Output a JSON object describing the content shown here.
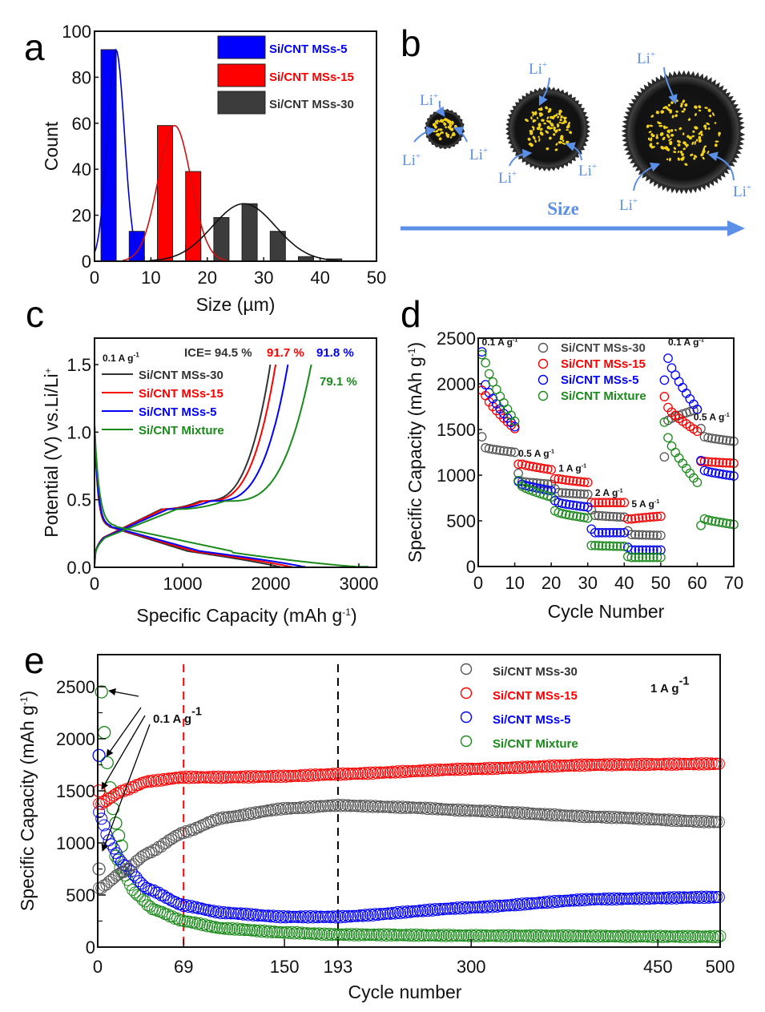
{
  "figure": {
    "panel_labels": [
      "a",
      "b",
      "c",
      "d",
      "e"
    ]
  },
  "colors": {
    "ms30": "#333333",
    "ms15": "#ff0000",
    "ms5": "#0000ff",
    "mixture": "#1a8a1a",
    "li_blue": "#5b8fe8",
    "dash_red": "#ff0000",
    "dash_black": "#000000"
  },
  "chart_data": [
    {
      "id": "a",
      "type": "bar",
      "title": "",
      "xlabel": "Size (µm)",
      "ylabel": "Count",
      "xlim": [
        0,
        50
      ],
      "ylim": [
        0,
        100
      ],
      "xticks": [
        "0",
        "10",
        "20",
        "30",
        "40",
        "50"
      ],
      "yticks": [
        "0",
        "20",
        "40",
        "60",
        "80",
        "100"
      ],
      "legend_position": "top-right",
      "bin_width": 2.5,
      "series": [
        {
          "name": "Si/CNT MSs-5",
          "color_key": "ms5",
          "bins": [
            2.5,
            7.5
          ],
          "values": [
            92,
            13
          ],
          "fit_mean": 3.8,
          "fit_sigma": 1.5,
          "fit_peak": 92
        },
        {
          "name": "Si/CNT MSs-15",
          "color_key": "ms15",
          "bins": [
            7.5,
            12.5,
            17.5
          ],
          "values": [
            2,
            59,
            39
          ],
          "fit_mean": 14.2,
          "fit_sigma": 2.9,
          "fit_peak": 59
        },
        {
          "name": "Si/CNT MSs-30",
          "color_key": "ms30",
          "bins": [
            17.5,
            22.5,
            27.5,
            32.5,
            37.5,
            42.5
          ],
          "values": [
            7,
            19,
            25,
            13,
            2,
            1
          ],
          "fit_mean": 26.5,
          "fit_sigma": 5.6,
          "fit_peak": 25
        }
      ]
    },
    {
      "id": "c",
      "type": "line",
      "xlabel": "Specific Capacity (mAh g-1)",
      "ylabel": "Potential (V) vs.Li/Li+",
      "xlim": [
        0,
        3200
      ],
      "ylim": [
        0,
        1.7
      ],
      "xticks": [
        "0",
        "1000",
        "2000",
        "3000"
      ],
      "yticks": [
        "0.0",
        "0.5",
        "1.0",
        "1.5"
      ],
      "legend_position": "top-left",
      "current_label": "0.1 A g-1",
      "ice_prefix": "ICE=",
      "series": [
        {
          "name": "Si/CNT MSs-30",
          "color_key": "ms30",
          "ice": "94.5 %",
          "discharge_capacity": 2110,
          "charge_capacity": 1995
        },
        {
          "name": "Si/CNT MSs-15",
          "color_key": "ms15",
          "ice": "91.7 %",
          "discharge_capacity": 2240,
          "charge_capacity": 2055
        },
        {
          "name": "Si/CNT MSs-5",
          "color_key": "ms5",
          "ice": "91.8 %",
          "discharge_capacity": 2390,
          "charge_capacity": 2195
        },
        {
          "name": "Si/CNT Mixture",
          "color_key": "mixture",
          "ice": "79.1 %",
          "discharge_capacity": 3110,
          "charge_capacity": 2460
        }
      ]
    },
    {
      "id": "d",
      "type": "scatter",
      "xlabel": "Cycle Number",
      "ylabel": "Specific Capacity (mAh g-1)",
      "xlim": [
        0,
        70
      ],
      "ylim": [
        0,
        2500
      ],
      "xticks": [
        "0",
        "10",
        "20",
        "30",
        "40",
        "50",
        "60",
        "70"
      ],
      "yticks": [
        "0",
        "500",
        "1000",
        "1500",
        "2000",
        "2500"
      ],
      "legend_position": "top-center",
      "rate_labels": [
        {
          "text": "0.1 A g-1",
          "x": 1,
          "y": 2420
        },
        {
          "text": "0.5 A g-1",
          "x": 11,
          "y": 1200
        },
        {
          "text": "1 A g-1",
          "x": 22,
          "y": 1040
        },
        {
          "text": "2 A g-1",
          "x": 32,
          "y": 770
        },
        {
          "text": "5 A g-1",
          "x": 42,
          "y": 650
        },
        {
          "text": "0.1 A g-1",
          "x": 52,
          "y": 2420
        },
        {
          "text": "0.5 A g-1",
          "x": 59,
          "y": 1600
        }
      ],
      "series": [
        {
          "name": "Si/CNT MSs-30",
          "color_key": "ms30",
          "segments": [
            [
              1,
              10,
              1420,
              1250,
              1300
            ],
            [
              11,
              20,
              1020,
              900,
              930
            ],
            [
              21,
              30,
              850,
              790,
              810
            ],
            [
              31,
              40,
              620,
              540,
              560
            ],
            [
              41,
              50,
              390,
              340,
              350
            ],
            [
              51,
              60,
              1200,
              1720,
              1600
            ],
            [
              61,
              70,
              1510,
              1370,
              1420
            ]
          ]
        },
        {
          "name": "Si/CNT MSs-15",
          "color_key": "ms15",
          "segments": [
            [
              1,
              10,
              1930,
              1510,
              1870
            ],
            [
              11,
              20,
              1120,
              1060,
              1120
            ],
            [
              21,
              30,
              960,
              920,
              960
            ],
            [
              31,
              40,
              700,
              700,
              700
            ],
            [
              41,
              50,
              520,
              550,
              520
            ],
            [
              51,
              60,
              1860,
              1480,
              1740
            ],
            [
              61,
              70,
              1150,
              1130,
              1150
            ]
          ]
        },
        {
          "name": "Si/CNT MSs-5",
          "color_key": "ms5",
          "segments": [
            [
              1,
              10,
              2350,
              1530,
              1990
            ],
            [
              11,
              20,
              930,
              830,
              900
            ],
            [
              21,
              30,
              720,
              650,
              700
            ],
            [
              31,
              40,
              410,
              370,
              370
            ],
            [
              41,
              50,
              210,
              180,
              180
            ],
            [
              51,
              60,
              2040,
              1720,
              2280
            ],
            [
              61,
              70,
              1160,
              990,
              1050
            ]
          ]
        },
        {
          "name": "Si/CNT Mixture",
          "color_key": "mixture",
          "segments": [
            [
              1,
              10,
              2320,
              1590,
              2230
            ],
            [
              11,
              20,
              940,
              760,
              880
            ],
            [
              21,
              30,
              610,
              530,
              590
            ],
            [
              31,
              40,
              230,
              220,
              230
            ],
            [
              41,
              50,
              110,
              100,
              100
            ],
            [
              51,
              60,
              1580,
              920,
              1410
            ],
            [
              61,
              70,
              450,
              460,
              520
            ]
          ]
        }
      ]
    },
    {
      "id": "e",
      "type": "scatter",
      "xlabel": "Cycle number",
      "ylabel": "Specific Capacity (mAh g-1)",
      "xlim": [
        0,
        500
      ],
      "ylim": [
        0,
        2800
      ],
      "xticks": [
        "0",
        "69",
        "150",
        "193",
        "300",
        "450",
        "500"
      ],
      "xtick_values": [
        0,
        69,
        150,
        193,
        300,
        450,
        500
      ],
      "yticks": [
        "0",
        "500",
        "1000",
        "1500",
        "2000",
        "2500"
      ],
      "legend_position": "top-right",
      "current_label": "1 A g-1",
      "activation_label": "0.1 A g-1",
      "vlines": [
        {
          "x": 69,
          "color_key": "dash_red"
        },
        {
          "x": 193,
          "color_key": "dash_black"
        }
      ],
      "series": [
        {
          "name": "Si/CNT MSs-30",
          "color_key": "ms30",
          "initial": [
            750
          ],
          "points": [
            [
              1,
              560
            ],
            [
              20,
              720
            ],
            [
              40,
              900
            ],
            [
              69,
              1100
            ],
            [
              100,
              1240
            ],
            [
              150,
              1330
            ],
            [
              193,
              1360
            ],
            [
              250,
              1340
            ],
            [
              300,
              1310
            ],
            [
              400,
              1250
            ],
            [
              500,
              1200
            ]
          ]
        },
        {
          "name": "Si/CNT MSs-15",
          "color_key": "ms15",
          "initial": [
            1500
          ],
          "points": [
            [
              1,
              1370
            ],
            [
              20,
              1500
            ],
            [
              40,
              1590
            ],
            [
              69,
              1630
            ],
            [
              100,
              1630
            ],
            [
              150,
              1640
            ],
            [
              193,
              1660
            ],
            [
              300,
              1710
            ],
            [
              400,
              1750
            ],
            [
              500,
              1760
            ]
          ]
        },
        {
          "name": "Si/CNT MSs-5",
          "color_key": "ms5",
          "initial": [
            1840
          ],
          "points": [
            [
              1,
              1290
            ],
            [
              10,
              1000
            ],
            [
              20,
              800
            ],
            [
              40,
              560
            ],
            [
              69,
              400
            ],
            [
              100,
              330
            ],
            [
              150,
              290
            ],
            [
              193,
              290
            ],
            [
              300,
              380
            ],
            [
              400,
              460
            ],
            [
              500,
              480
            ]
          ]
        },
        {
          "name": "Si/CNT Mixture",
          "color_key": "mixture",
          "initial": [
            2450,
            2060,
            1770,
            1530,
            1330,
            1190,
            1070,
            970
          ],
          "points": [
            [
              14,
              880
            ],
            [
              20,
              720
            ],
            [
              30,
              520
            ],
            [
              45,
              360
            ],
            [
              69,
              250
            ],
            [
              100,
              180
            ],
            [
              150,
              140
            ],
            [
              193,
              120
            ],
            [
              300,
              110
            ],
            [
              500,
              100
            ]
          ]
        }
      ]
    }
  ],
  "panel_b": {
    "size_label": "Size",
    "li_label": "Li",
    "li_sup": "+"
  },
  "panel_c_text": {
    "ylabel_main": "Potential (V) vs.Li/Li",
    "ylabel_sup": "+",
    "xlabel_main": "Specific Capacity (mAh g",
    "xlabel_sup": "-1",
    "xlabel_end": ")",
    "current_main": "0.1 A g",
    "current_sup": "-1",
    "ice_prefix": "ICE= 94.5 %",
    "ice_15": "91.7 %",
    "ice_5": "91.8 %",
    "ice_mix": "79.1 %"
  },
  "panel_d_text": {
    "ylabel_main": "Specific Capacity (mAh g",
    "ylabel_sup": "-1",
    "ylabel_end": ")",
    "rate_main": "A g",
    "rate_sup": "-1"
  },
  "panel_e_text": {
    "ylabel_main": "Specific Capacity (mAh g",
    "ylabel_sup": "-1",
    "ylabel_end": ")",
    "current_main": "1 A g",
    "current_sup": "-1",
    "activation_main": "0.1 A g",
    "activation_sup": "-1"
  }
}
